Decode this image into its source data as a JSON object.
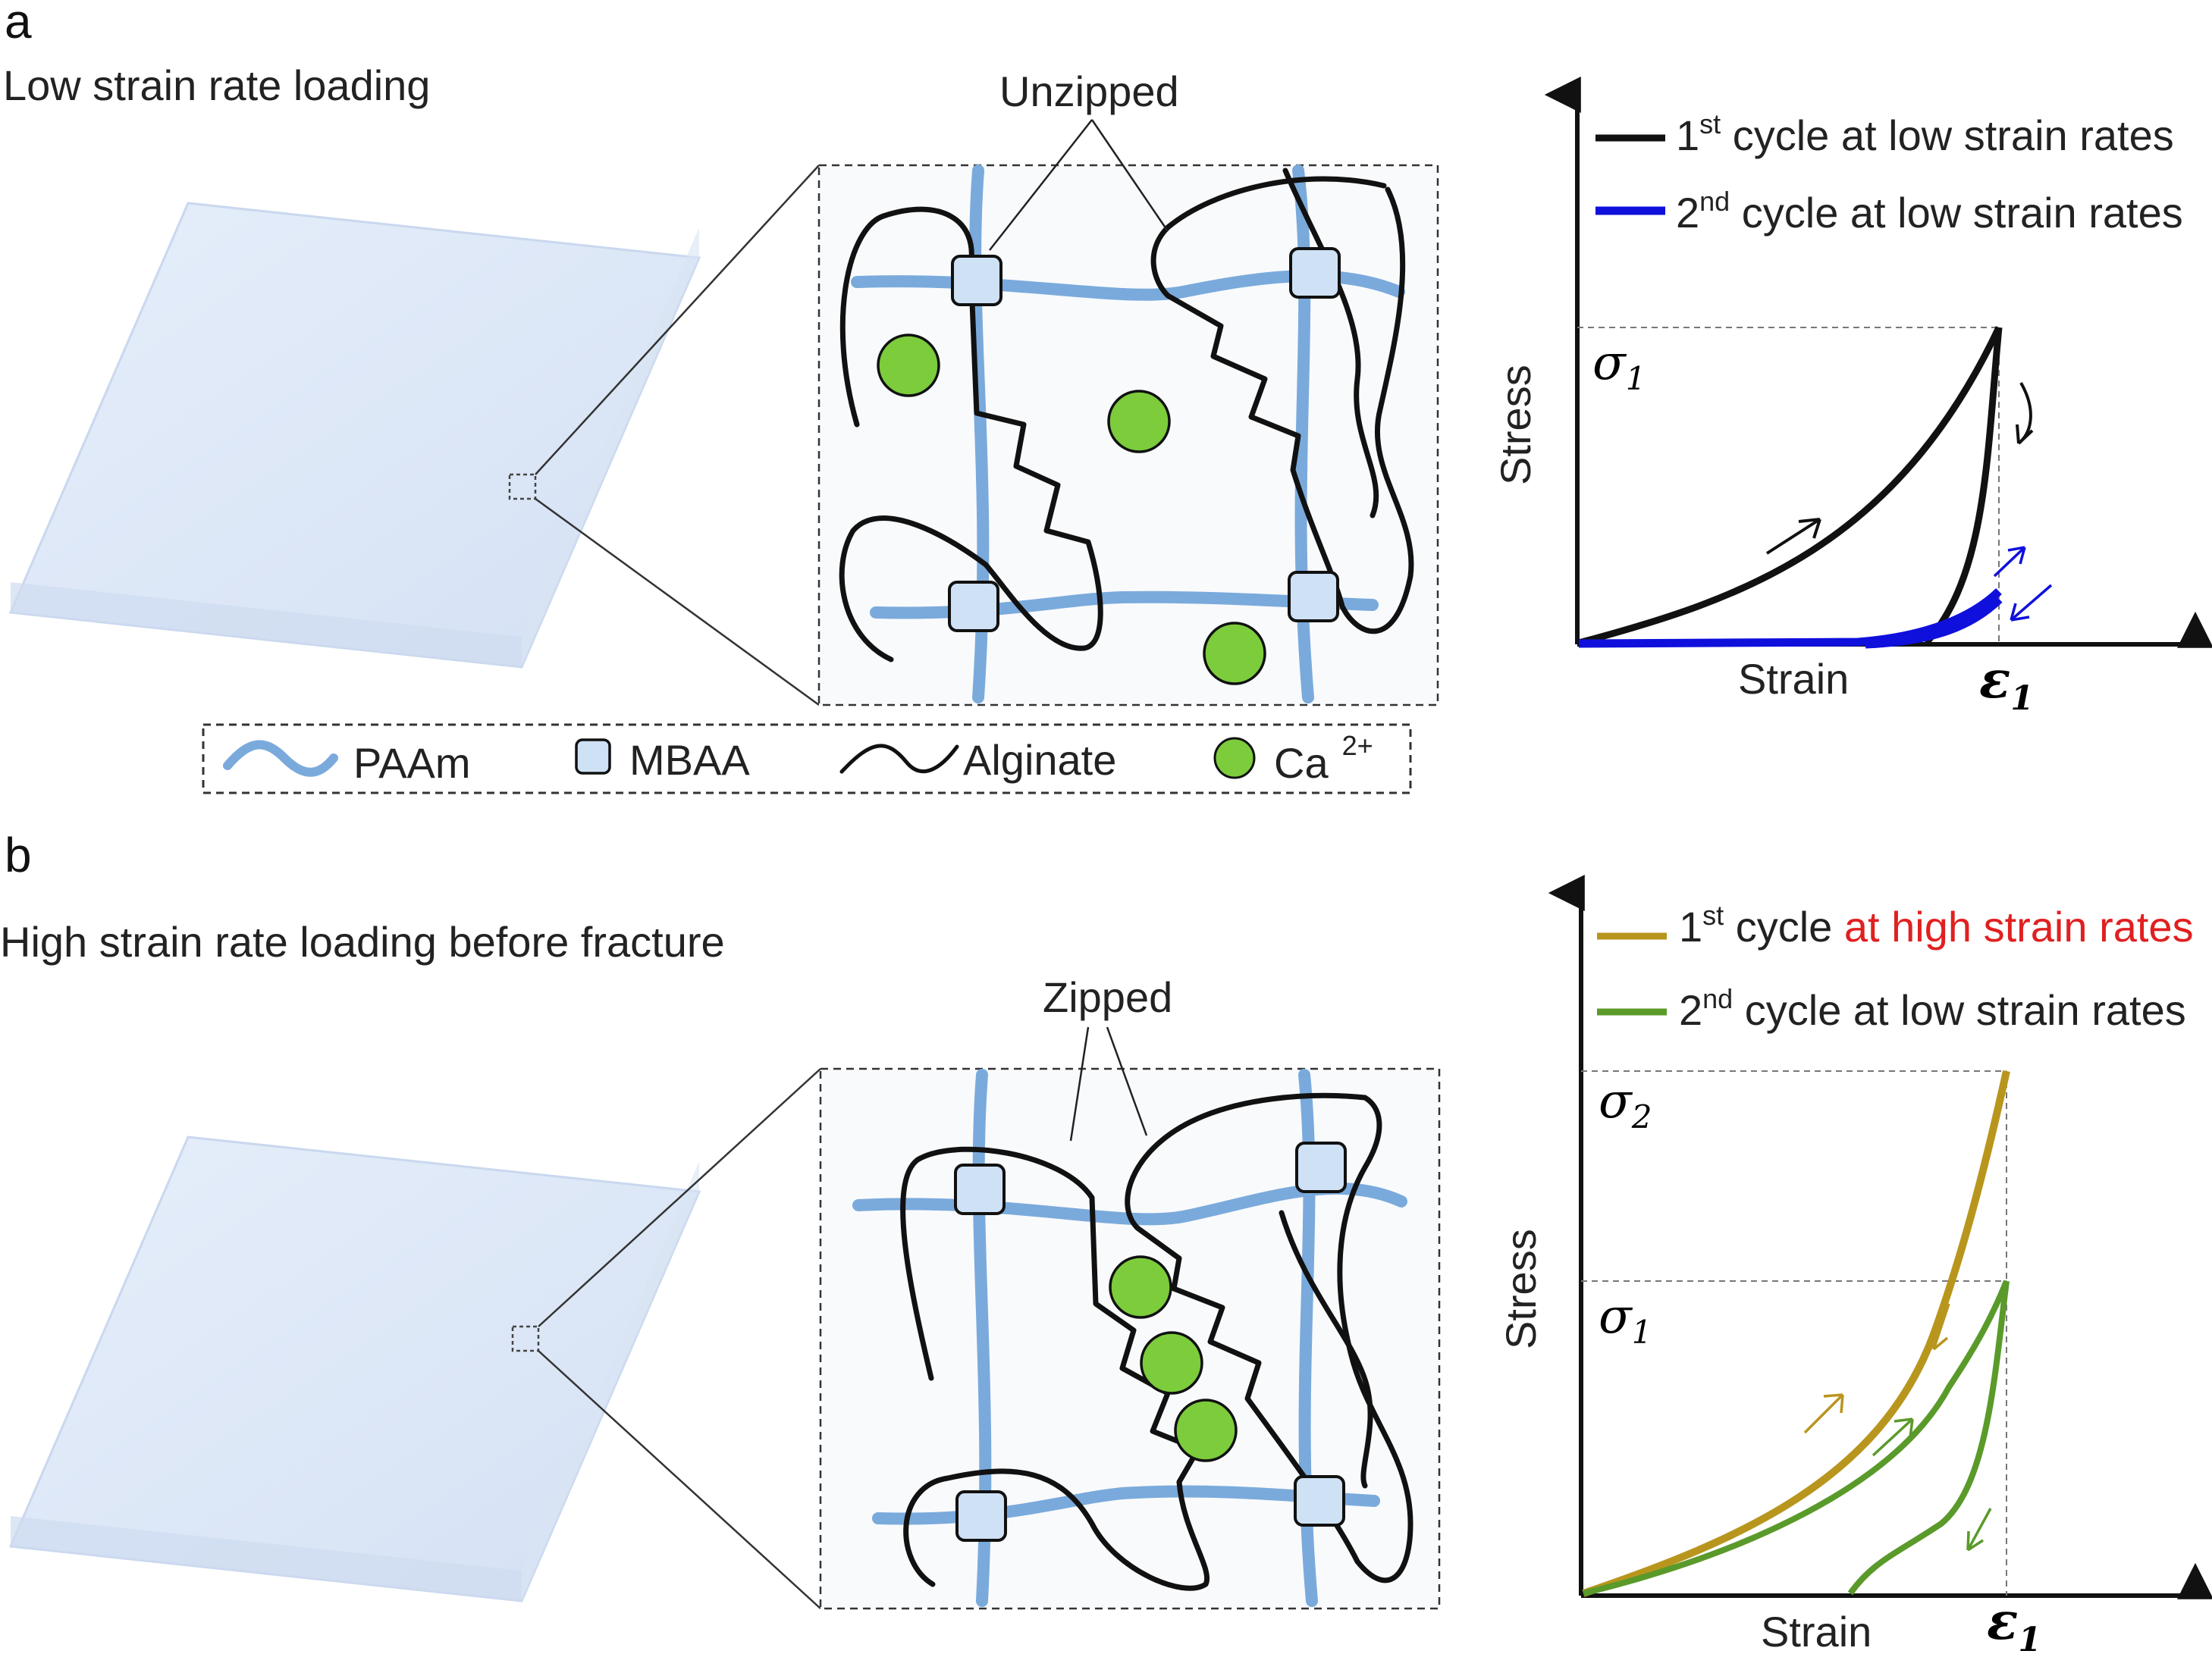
{
  "panel_a": {
    "letter": "a",
    "caption": "Low strain rate loading",
    "callout": "Unzipped",
    "chart": {
      "ylabel": "Stress",
      "xlabel": "Strain",
      "sigma_main": "σ",
      "sigma_sub": "1",
      "eps_main": "ε",
      "eps_sub": "1",
      "legend": [
        {
          "num": "1",
          "sup": "st",
          "text": " cycle at low strain rates",
          "color": "#111111",
          "highlight": ""
        },
        {
          "num": "2",
          "sup": "nd",
          "text": " cycle at low strain rates",
          "color": "#1010dd",
          "highlight": ""
        }
      ]
    }
  },
  "legend": {
    "paam": "PAAm",
    "mbaa": "MBAA",
    "alginate": "Alginate",
    "ca": "Ca",
    "ca_sup": "2+"
  },
  "panel_b": {
    "letter": "b",
    "caption": "High strain rate loading before fracture",
    "callout": "Zipped",
    "chart": {
      "ylabel": "Stress",
      "xlabel": "Strain",
      "sigma2_main": "σ",
      "sigma2_sub": "2",
      "sigma1_main": "σ",
      "sigma1_sub": "1",
      "eps_main": "ε",
      "eps_sub": "1",
      "legend": [
        {
          "num": "1",
          "sup": "st",
          "text": " cycle ",
          "color": "#b8961e",
          "highlight": "at high strain rates"
        },
        {
          "num": "2",
          "sup": "nd",
          "text": " cycle at low strain rates",
          "color": "#5a9a2a",
          "highlight": ""
        }
      ]
    }
  },
  "colors": {
    "paam": "#7aaadc",
    "mbaa_fill": "#cfe1f5",
    "ca_fill": "#7ccc3c",
    "slab": "#dde8f7",
    "highlight_text": "#e02020"
  }
}
